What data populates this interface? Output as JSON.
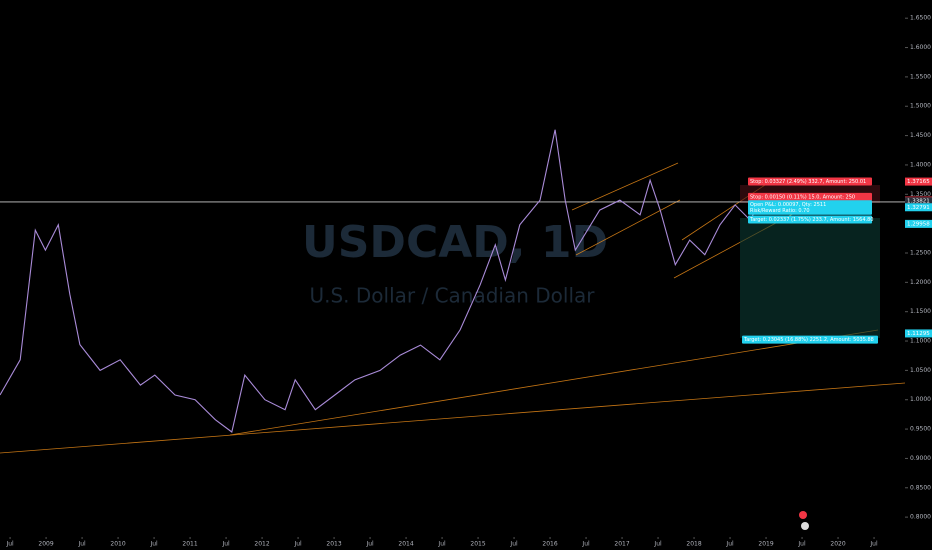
{
  "chart_data": {
    "type": "line",
    "watermark_symbol": "USDCAD, 1D",
    "watermark_name": "U.S. Dollar / Canadian Dollar",
    "series": [
      {
        "name": "USDCAD",
        "color": "#a98bd8",
        "x": [
          2008.36,
          2008.64,
          2008.85,
          2008.99,
          2009.17,
          2009.33,
          2009.47,
          2009.75,
          2010.03,
          2010.31,
          2010.51,
          2010.79,
          2011.07,
          2011.35,
          2011.58,
          2011.76,
          2012.04,
          2012.32,
          2012.46,
          2012.74,
          2013.01,
          2013.29,
          2013.64,
          2013.92,
          2014.2,
          2014.47,
          2014.75,
          2015.03,
          2015.24,
          2015.38,
          2015.58,
          2015.86,
          2016.07,
          2016.21,
          2016.35,
          2016.69,
          2016.97,
          2017.25,
          2017.39,
          2017.53,
          2017.74,
          2017.94,
          2018.15,
          2018.36,
          2018.57,
          2018.78,
          2018.89
        ],
        "values": [
          1.008,
          1.068,
          1.289,
          1.255,
          1.298,
          1.18,
          1.094,
          1.05,
          1.068,
          1.025,
          1.042,
          1.008,
          1.0,
          0.966,
          0.945,
          1.042,
          1.0,
          0.983,
          1.034,
          0.983,
          1.008,
          1.034,
          1.05,
          1.076,
          1.093,
          1.068,
          1.119,
          1.196,
          1.264,
          1.204,
          1.298,
          1.34,
          1.46,
          1.34,
          1.255,
          1.323,
          1.34,
          1.315,
          1.374,
          1.323,
          1.23,
          1.272,
          1.247,
          1.298,
          1.332,
          1.306,
          1.332
        ]
      }
    ],
    "xlim": [
      2008.36,
      2020.93
    ],
    "xticks": [
      {
        "value": 2008.5,
        "label": "Jul"
      },
      2009,
      {
        "value": 2009.5,
        "label": "Jul"
      },
      2010,
      {
        "value": 2010.5,
        "label": "Jul"
      },
      2011,
      {
        "value": 2011.5,
        "label": "Jul"
      },
      2012,
      {
        "value": 2012.5,
        "label": "Jul"
      },
      2013,
      {
        "value": 2013.5,
        "label": "Jul"
      },
      2014,
      {
        "value": 2014.5,
        "label": "Jul"
      },
      2015,
      {
        "value": 2015.5,
        "label": "Jul"
      },
      2016,
      {
        "value": 2016.5,
        "label": "Jul"
      },
      2017,
      {
        "value": 2017.5,
        "label": "Jul"
      },
      2018,
      {
        "value": 2018.5,
        "label": "Jul"
      },
      2019,
      {
        "value": 2019.5,
        "label": "Jul"
      },
      2020,
      {
        "value": 2020.5,
        "label": "Jul"
      }
    ],
    "ylim": [
      0.744,
      1.681
    ],
    "yticks": [
      {
        "value": 0.8,
        "label": "0.8000"
      },
      {
        "value": 0.85,
        "label": "0.8500"
      },
      {
        "value": 0.9,
        "label": "0.9000"
      },
      {
        "value": 0.95,
        "label": "0.9500"
      },
      {
        "value": 1.0,
        "label": "1.0000"
      },
      {
        "value": 1.05,
        "label": "1.0500"
      },
      {
        "value": 1.1,
        "label": "1.1000"
      },
      {
        "value": 1.15,
        "label": "1.1500"
      },
      {
        "value": 1.2,
        "label": "1.2000"
      },
      {
        "value": 1.25,
        "label": "1.2500"
      },
      {
        "value": 1.3,
        "label": "1.3000"
      },
      {
        "value": 1.35,
        "label": "1.3500"
      },
      {
        "value": 1.4,
        "label": "1.4000"
      },
      {
        "value": 1.45,
        "label": "1.4500"
      },
      {
        "value": 1.5,
        "label": "1.5000"
      },
      {
        "value": 1.55,
        "label": "1.5500"
      },
      {
        "value": 1.6,
        "label": "1.6000"
      },
      {
        "value": 1.65,
        "label": "1.6500"
      }
    ],
    "price_tags": [
      {
        "value": 1.37165,
        "color": "#f23645"
      },
      {
        "value": 1.33941,
        "color": "#f23645"
      },
      {
        "value": 1.33838,
        "color": "#f23645"
      },
      {
        "value": 1.33821,
        "color": "#2a2e39"
      },
      {
        "value": 1.32791,
        "color": "#22d1ee"
      },
      {
        "value": 1.29958,
        "color": "#22d1ee"
      },
      {
        "value": 1.11295,
        "color": "#22d1ee"
      }
    ],
    "hline": 1.337,
    "annotations": [
      {
        "text": "Stop: 0.03327 (2.49%) 332.7, Amount: 250.01",
        "color": "#f23645",
        "value": 1.3717
      },
      {
        "text": "Stop: 0.00150 (0.11%) 15.0, Amount: 250",
        "color": "#f23645",
        "value": 1.3455
      },
      {
        "text": "Open P&L: 0.00097, Qty: 2511",
        "color": "#22d1ee",
        "value": 1.333
      },
      {
        "text": "Risk/Reward Ratio: 0.70",
        "color": "#22d1ee",
        "value": 1.322
      },
      {
        "text": "Target: 0.02337 (1.75%) 233.7, Amount: 1564.80",
        "color": "#22d1ee",
        "value": 1.307
      },
      {
        "text": "Target: 0.23045 (16.88%) 2251.2, Amount: 5035.88",
        "color": "#22d1ee",
        "value": 1.1025
      }
    ]
  }
}
